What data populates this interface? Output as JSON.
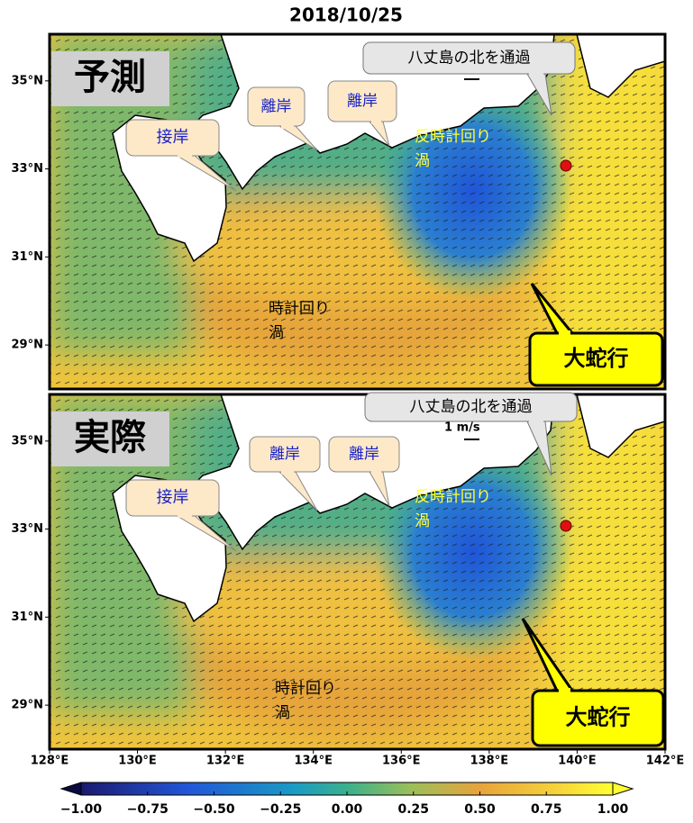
{
  "title": "2018/10/25",
  "panels": [
    {
      "label": "予測",
      "callouts": {
        "setsugan": "接岸",
        "rigan_1": "離岸",
        "rigan_2": "離岸",
        "hachijo": "八丈島の北を通過",
        "meander": "大蛇行"
      },
      "counter_eddy": [
        "反時計回り",
        "渦"
      ],
      "clockwise_eddy": [
        "時計回り",
        "渦"
      ]
    },
    {
      "label": "実際",
      "callouts": {
        "setsugan": "接岸",
        "rigan_1": "離岸",
        "rigan_2": "離岸",
        "hachijo": "八丈島の北を通過",
        "meander": "大蛇行"
      },
      "counter_eddy": [
        "反時計回り",
        "渦"
      ],
      "clockwise_eddy": [
        "時計回り",
        "渦"
      ],
      "scale_label": "1 m/s"
    }
  ],
  "lat_lim": [
    28,
    36.06
  ],
  "lat_ticks": [
    {
      "value": 35,
      "label": "35°N"
    },
    {
      "value": 33,
      "label": "33°N"
    },
    {
      "value": 31,
      "label": "31°N"
    },
    {
      "value": 29,
      "label": "29°N"
    }
  ],
  "lon_lim": [
    128,
    142
  ],
  "lon_ticks": [
    {
      "value": 128,
      "label": "128°E"
    },
    {
      "value": 130,
      "label": "130°E"
    },
    {
      "value": 132,
      "label": "132°E"
    },
    {
      "value": 134,
      "label": "134°E"
    },
    {
      "value": 136,
      "label": "136°E"
    },
    {
      "value": 138,
      "label": "138°E"
    },
    {
      "value": 140,
      "label": "140°E"
    },
    {
      "value": 142,
      "label": "142°E"
    }
  ],
  "colorbar_lim": [
    -1,
    1
  ],
  "colorbar_ticks": [
    {
      "value": -1,
      "label": "−1.00"
    },
    {
      "value": -0.75,
      "label": "−0.75"
    },
    {
      "value": -0.5,
      "label": "−0.50"
    },
    {
      "value": -0.25,
      "label": "−0.25"
    },
    {
      "value": 0,
      "label": "0.00"
    },
    {
      "value": 0.25,
      "label": "0.25"
    },
    {
      "value": 0.5,
      "label": "0.50"
    },
    {
      "value": 0.75,
      "label": "0.75"
    },
    {
      "value": 1,
      "label": "1.00"
    }
  ]
}
